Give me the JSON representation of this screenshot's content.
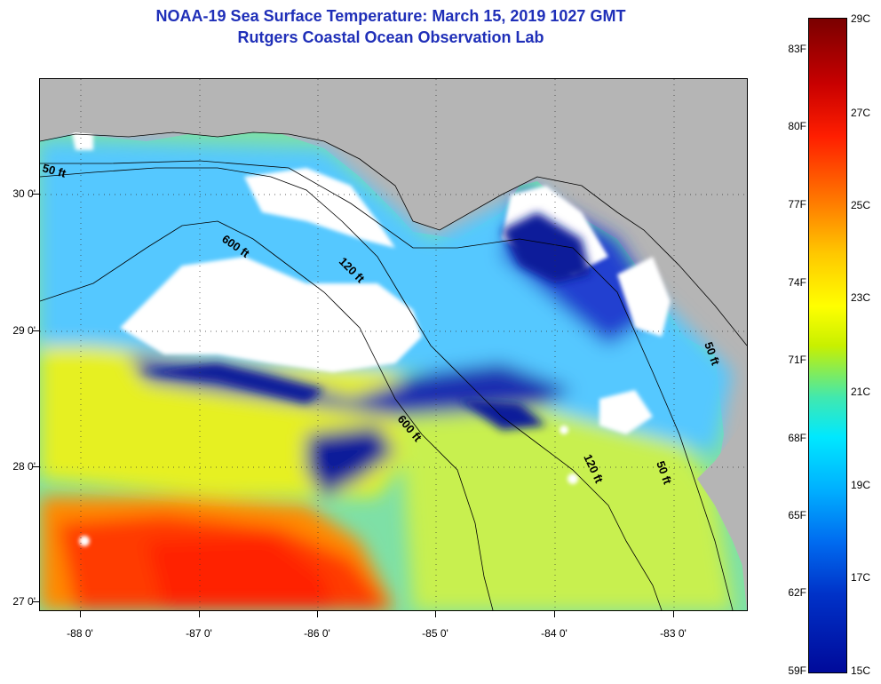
{
  "title": {
    "line1": "NOAA-19 Sea Surface Temperature:  March 15, 2019 1027 GMT",
    "line2": "Rutgers Coastal Ocean Observation Lab"
  },
  "lat_labels": [
    "30 0'",
    "29 0'",
    "28 0'",
    "27 0'"
  ],
  "lon_labels": [
    "-88 0'",
    "-87 0'",
    "-86 0'",
    "-85 0'",
    "-84 0'",
    "-83 0'"
  ],
  "colorbar": {
    "f_labels": [
      "83F",
      "80F",
      "77F",
      "74F",
      "71F",
      "68F",
      "65F",
      "62F",
      "59F"
    ],
    "c_labels": [
      "29C",
      "27C",
      "25C",
      "23C",
      "21C",
      "19C",
      "17C",
      "15C"
    ]
  },
  "contour_labels": [
    "50 ft",
    "600 ft",
    "120 ft",
    "600 ft",
    "120 ft",
    "50 ft",
    "50 ft"
  ],
  "colors": {
    "title": "#1f2fb8",
    "land": "#b5b5b5",
    "cloud": "#ffffff"
  }
}
